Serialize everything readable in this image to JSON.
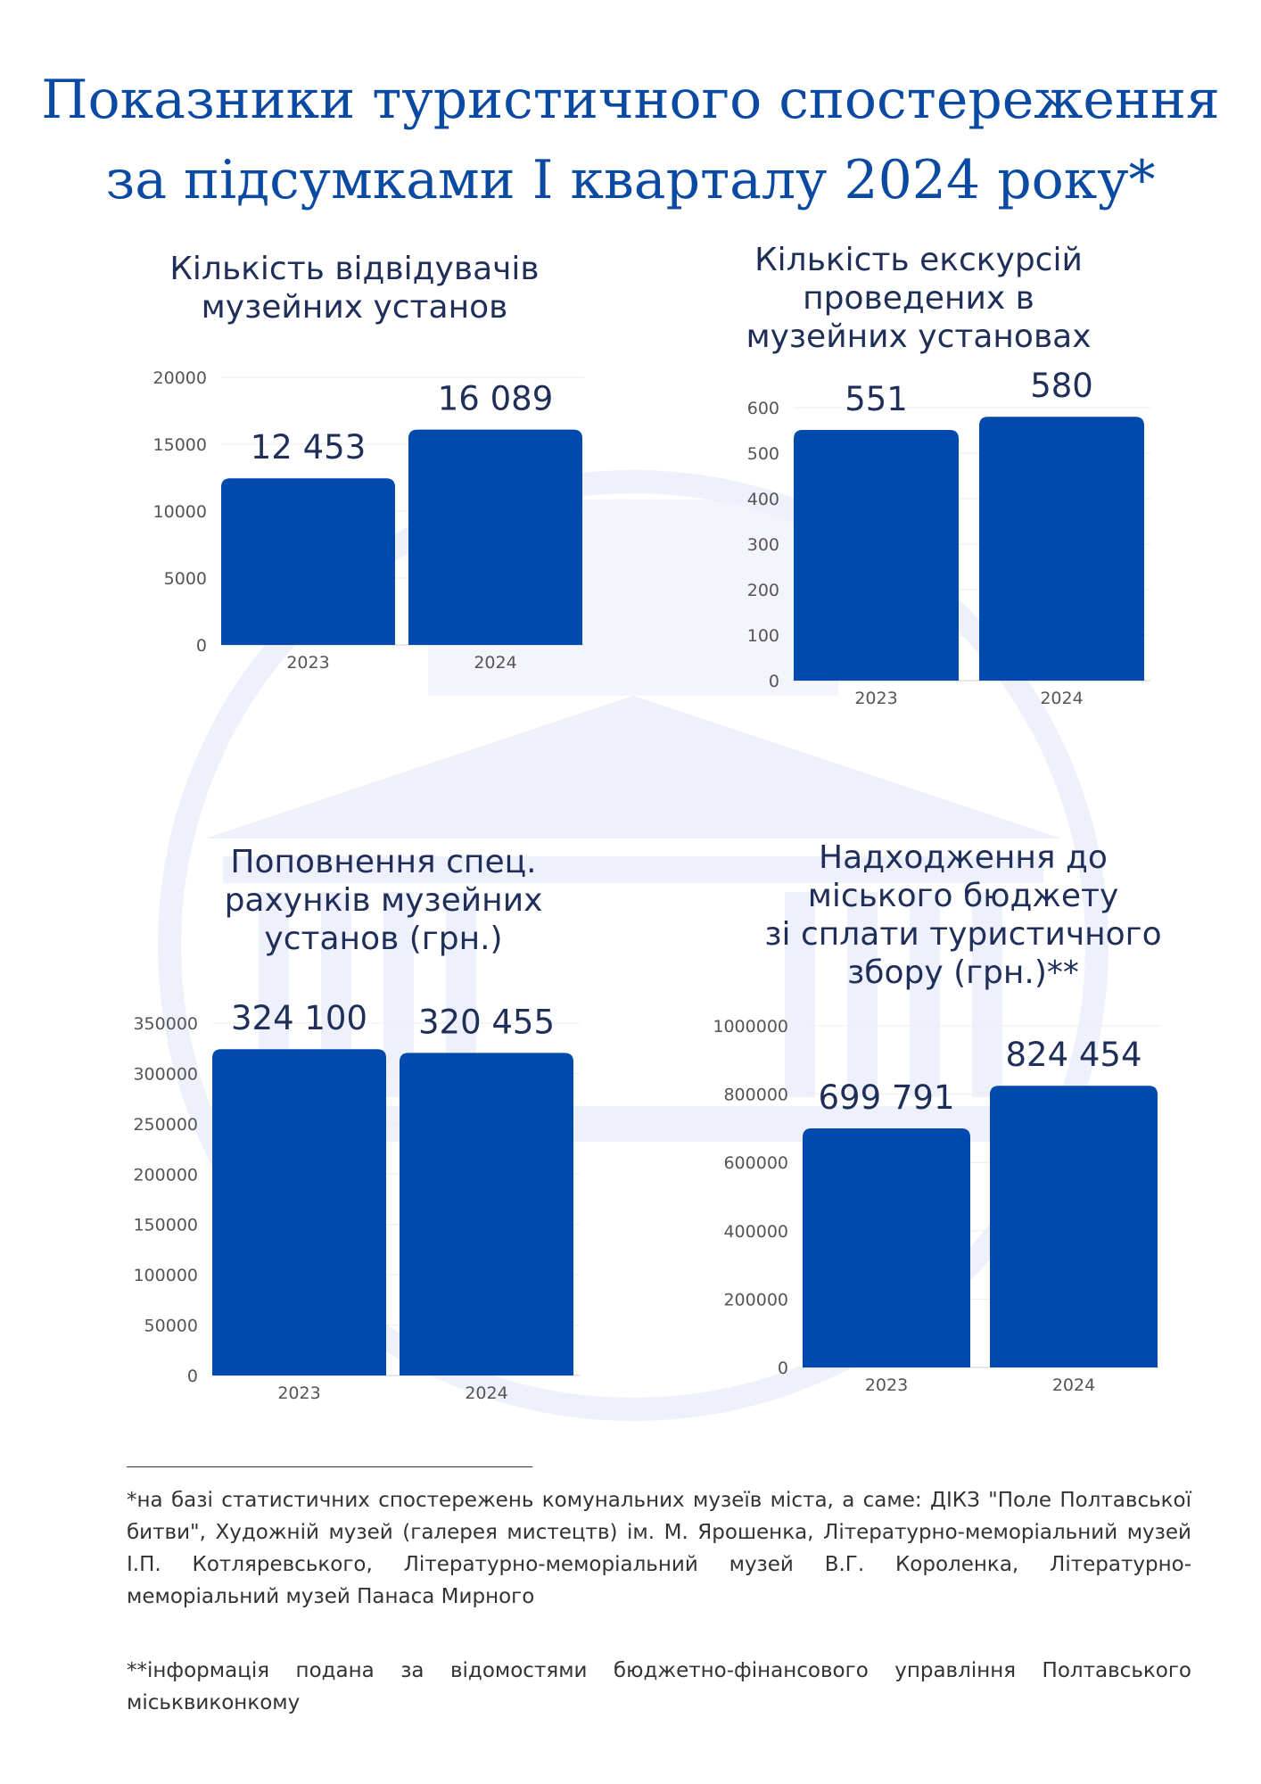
{
  "page": {
    "title_line1": "Показники туристичного спостереження",
    "title_line2": "за підсумками І кварталу 2024 року*"
  },
  "colors": {
    "bar": "#004aad",
    "title": "#0b4aa2",
    "text": "#1f2f59",
    "watermark": "#eef0fb"
  },
  "chart_data": [
    {
      "type": "bar",
      "title": "Кількість відвідувачів\nмузейних установ",
      "categories": [
        "2023",
        "2024"
      ],
      "values": [
        12453,
        16089
      ],
      "value_labels": [
        "12 453",
        "16 089"
      ],
      "ylim": [
        0,
        20000
      ],
      "yticks": [
        "0",
        "5000",
        "10000",
        "15000",
        "20000"
      ],
      "ytick_values": [
        0,
        5000,
        10000,
        15000,
        20000
      ],
      "xlabel": "",
      "ylabel": "",
      "grid": true
    },
    {
      "type": "bar",
      "title": "Кількість екскурсій\nпроведених в\nмузейних установах",
      "categories": [
        "2023",
        "2024"
      ],
      "values": [
        551,
        580
      ],
      "value_labels": [
        "551",
        "580"
      ],
      "ylim": [
        0,
        600
      ],
      "yticks": [
        "0",
        "100",
        "200",
        "300",
        "400",
        "500",
        "600"
      ],
      "ytick_values": [
        0,
        100,
        200,
        300,
        400,
        500,
        600
      ],
      "xlabel": "",
      "ylabel": "",
      "grid": true
    },
    {
      "type": "bar",
      "title": "Поповнення спец.\nрахунків музейних\nустанов (грн.)",
      "categories": [
        "2023",
        "2024"
      ],
      "values": [
        324100,
        320455
      ],
      "value_labels": [
        "324 100",
        "320 455"
      ],
      "ylim": [
        0,
        350000
      ],
      "yticks": [
        "0",
        "50000",
        "100000",
        "150000",
        "200000",
        "250000",
        "300000",
        "350000"
      ],
      "ytick_values": [
        0,
        50000,
        100000,
        150000,
        200000,
        250000,
        300000,
        350000
      ],
      "xlabel": "",
      "ylabel": "",
      "grid": true
    },
    {
      "type": "bar",
      "title": "Надходження до\nміського бюджету\nзі сплати туристичного\nзбору (грн.)**",
      "categories": [
        "2023",
        "2024"
      ],
      "values": [
        699791,
        824454
      ],
      "value_labels": [
        "699 791",
        "824 454"
      ],
      "ylim": [
        0,
        1000000
      ],
      "yticks": [
        "0",
        "200000",
        "400000",
        "600000",
        "800000",
        "1000000"
      ],
      "ytick_values": [
        0,
        200000,
        400000,
        600000,
        800000,
        1000000
      ],
      "xlabel": "",
      "ylabel": "",
      "grid": true
    }
  ],
  "footnotes": {
    "note1": "*на базі статистичних спостережень комунальних музеїв міста, а саме: ДІКЗ \"Поле Полтавської битви\", Художній музей (галерея мистецтв) ім. М. Ярошенка, Літературно-меморіальний музей І.П. Котляревського, Літературно-меморіальний музей В.Г. Короленка, Літературно-меморіальний музей Панаса Мирного",
    "note2": "**інформація подана за відомостями бюджетно-фінансового управління Полтавського міськвиконкому"
  }
}
